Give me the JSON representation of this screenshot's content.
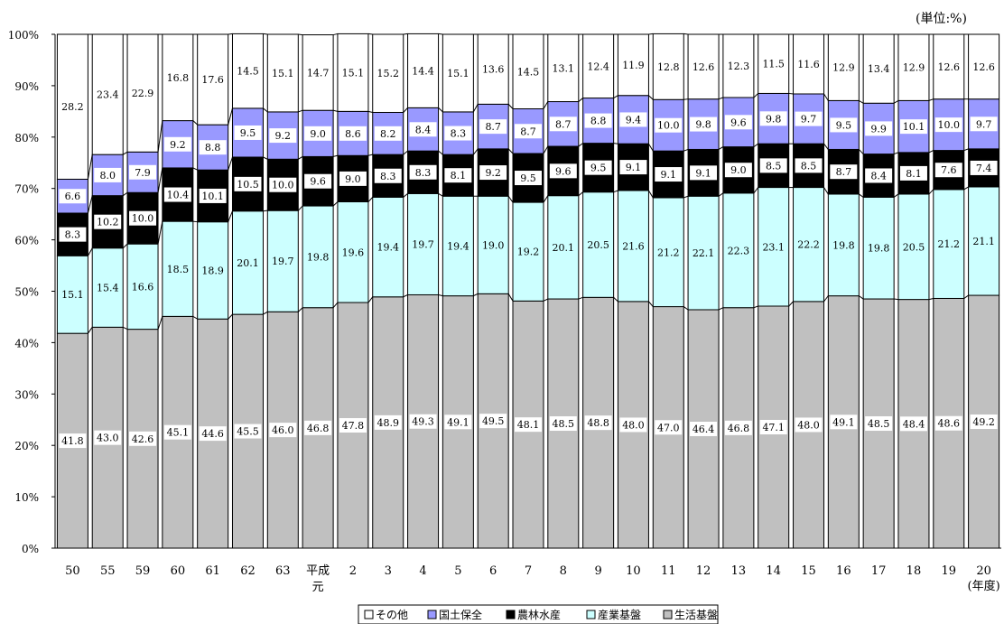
{
  "chart_data": {
    "type": "bar",
    "stacked": true,
    "unit_label": "(単位:%)",
    "x_axis_suffix": "(年度)",
    "categories": [
      "50",
      "55",
      "59",
      "60",
      "61",
      "62",
      "63",
      "平成\n元",
      "2",
      "3",
      "4",
      "5",
      "6",
      "7",
      "8",
      "9",
      "10",
      "11",
      "12",
      "13",
      "14",
      "15",
      "16",
      "17",
      "18",
      "19",
      "20"
    ],
    "ylim": [
      0,
      100
    ],
    "y_ticks": [
      "0%",
      "10%",
      "20%",
      "30%",
      "40%",
      "50%",
      "60%",
      "70%",
      "80%",
      "90%",
      "100%"
    ],
    "series": [
      {
        "name": "生活基盤",
        "color": "#c0c0c0",
        "label_style": "white",
        "values": [
          41.8,
          43.0,
          42.6,
          45.1,
          44.6,
          45.5,
          46.0,
          46.8,
          47.8,
          48.9,
          49.3,
          49.1,
          49.5,
          48.1,
          48.5,
          48.8,
          48.0,
          47.0,
          46.4,
          46.8,
          47.1,
          48.0,
          49.1,
          48.5,
          48.4,
          48.6,
          49.2
        ]
      },
      {
        "name": "産業基盤",
        "color": "#ccffff",
        "label_style": "plain",
        "values": [
          15.1,
          15.4,
          16.6,
          18.5,
          18.9,
          20.1,
          19.7,
          19.8,
          19.6,
          19.4,
          19.7,
          19.4,
          19.0,
          19.2,
          20.1,
          20.5,
          21.6,
          21.2,
          22.1,
          22.3,
          23.1,
          22.2,
          19.8,
          19.8,
          20.5,
          21.2,
          21.1
        ]
      },
      {
        "name": "農林水産",
        "color": "#000000",
        "label_style": "white",
        "values": [
          8.3,
          10.2,
          10.0,
          10.4,
          10.1,
          10.5,
          10.0,
          9.6,
          9.0,
          8.3,
          8.3,
          8.1,
          9.2,
          9.5,
          9.6,
          9.5,
          9.1,
          9.1,
          9.1,
          9.0,
          8.5,
          8.5,
          8.7,
          8.4,
          8.1,
          7.6,
          7.4
        ]
      },
      {
        "name": "国土保全",
        "color": "#9999ff",
        "label_style": "white",
        "values": [
          6.6,
          8.0,
          7.9,
          9.2,
          8.8,
          9.5,
          9.2,
          9.0,
          8.6,
          8.2,
          8.4,
          8.3,
          8.7,
          8.7,
          8.7,
          8.8,
          9.4,
          10.0,
          9.8,
          9.6,
          9.8,
          9.7,
          9.5,
          9.9,
          10.1,
          10.0,
          9.7
        ]
      },
      {
        "name": "その他",
        "color": "#ffffff",
        "label_style": "plain",
        "values": [
          28.2,
          23.4,
          22.9,
          16.8,
          17.6,
          14.5,
          15.1,
          14.7,
          15.1,
          15.2,
          14.4,
          15.1,
          13.6,
          14.5,
          13.1,
          12.4,
          11.9,
          12.8,
          12.6,
          12.3,
          11.5,
          11.6,
          12.9,
          13.4,
          12.9,
          12.6,
          12.6
        ]
      }
    ],
    "legend": {
      "position": "bottom-center",
      "order": [
        "その他",
        "国土保全",
        "農林水産",
        "産業基盤",
        "生活基盤"
      ]
    },
    "grid": false
  }
}
